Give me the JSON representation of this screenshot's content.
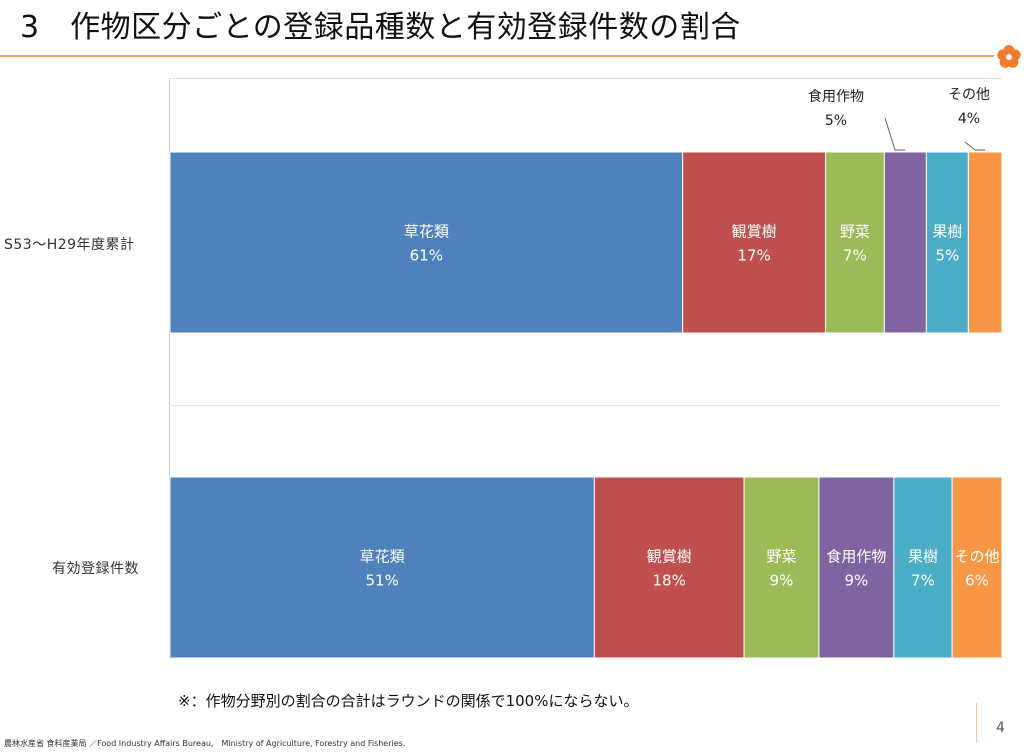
{
  "page": {
    "title": "3　作物区分ごとの登録品種数と有効登録件数の割合",
    "footnote": "※：作物分野別の割合の合計はラウンドの関係で100%にならない。",
    "footer": "農林水産省 食料産業局 ／Food Industry Affairs Bureau,　Ministry of Agriculture, Forestry and Fisheries.",
    "page_number": "4"
  },
  "colors": {
    "accent_rule": "#f0a45c",
    "flower": "#ee7d2d"
  },
  "chart_data": {
    "type": "bar",
    "orientation": "horizontal",
    "stacked": "percent",
    "title": "",
    "categories": [
      "S53～H29年度累計",
      "有効登録件数"
    ],
    "series": [
      {
        "name": "草花類",
        "color": "#4f81bd",
        "values": [
          61,
          51
        ]
      },
      {
        "name": "観賞樹",
        "color": "#c0504d",
        "values": [
          17,
          18
        ]
      },
      {
        "name": "野菜",
        "color": "#9bbb59",
        "values": [
          7,
          9
        ]
      },
      {
        "name": "食用作物",
        "color": "#8064a2",
        "values": [
          5,
          9
        ]
      },
      {
        "name": "果樹",
        "color": "#4bacc6",
        "values": [
          5,
          7
        ]
      },
      {
        "name": "その他",
        "color": "#f79646",
        "values": [
          4,
          6
        ]
      }
    ],
    "value_suffix": "%",
    "xlim": [
      0,
      100
    ],
    "grid": false,
    "legend": "none"
  }
}
